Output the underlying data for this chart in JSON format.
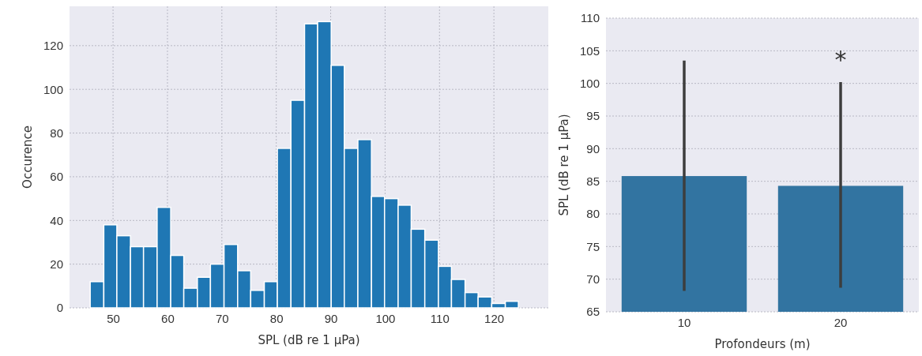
{
  "chart_data": [
    {
      "type": "histogram",
      "xlabel": "SPL (dB re 1 µPa)",
      "ylabel": "Occurence",
      "color": "#1f77b4",
      "bins": [
        45.8,
        48.3,
        50.7,
        53.2,
        55.6,
        58.1,
        60.6,
        63.0,
        65.5,
        67.9,
        70.4,
        72.9,
        75.3,
        77.8,
        80.2,
        82.7,
        85.2,
        87.6,
        90.1,
        92.5,
        95.0,
        97.5,
        99.9,
        102.4,
        104.8,
        107.3,
        109.8,
        112.2,
        114.7,
        117.1,
        119.6,
        122.1,
        124.5
      ],
      "values": [
        12,
        38,
        33,
        28,
        28,
        46,
        24,
        9,
        14,
        20,
        29,
        17,
        8,
        12,
        73,
        95,
        130,
        131,
        111,
        73,
        77,
        51,
        50,
        47,
        36,
        31,
        19,
        13,
        7,
        5,
        2,
        3
      ],
      "xlim": [
        42,
        130
      ],
      "xticks": [
        50,
        60,
        70,
        80,
        90,
        100,
        110,
        120
      ],
      "ylim": [
        0,
        138
      ],
      "yticks": [
        0,
        20,
        40,
        60,
        80,
        100,
        120
      ],
      "grid": true
    },
    {
      "type": "bar",
      "xlabel": "Profondeurs (m)",
      "ylabel": "SPL (dB re 1 µPa)",
      "categories": [
        "10",
        "20"
      ],
      "values": [
        85.8,
        84.3
      ],
      "color": "#3274a1",
      "errors": [
        [
          68.2,
          103.5
        ],
        [
          68.7,
          100.2
        ]
      ],
      "ylim": [
        65,
        110
      ],
      "yticks": [
        65,
        70,
        75,
        80,
        85,
        90,
        95,
        100,
        105,
        110
      ],
      "grid": "y",
      "annotations": [
        "*"
      ]
    }
  ]
}
